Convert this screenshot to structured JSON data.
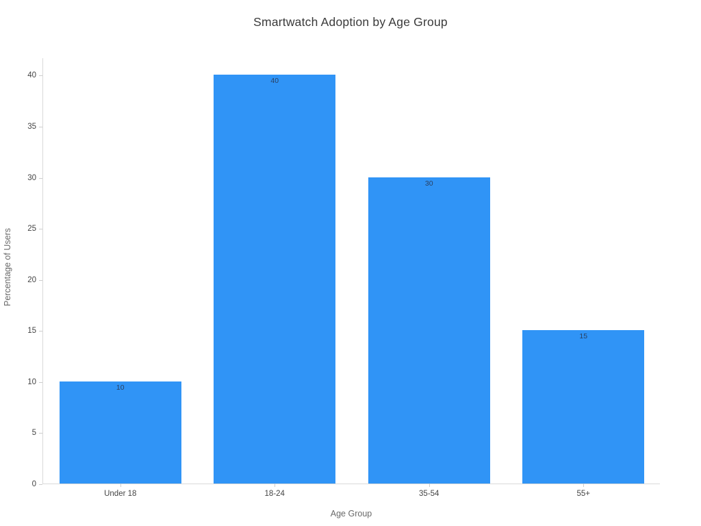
{
  "chart_data": {
    "type": "bar",
    "title": "Smartwatch Adoption by Age Group",
    "xlabel": "Age Group",
    "ylabel": "Percentage of Users",
    "categories": [
      "Under 18",
      "18-24",
      "35-54",
      "55+"
    ],
    "values": [
      10,
      40,
      30,
      15
    ],
    "yticks": [
      0,
      5,
      10,
      15,
      20,
      25,
      30,
      35,
      40
    ],
    "ylim": [
      0,
      41.7
    ],
    "grid": false,
    "legend": "none",
    "colors": {
      "bar_fill": "#3094F6",
      "bar_value_label": "#2a3f5f",
      "tick_label": "#444444",
      "axis_title": "#696969",
      "chart_title": "#3a3a3a",
      "spine": "#d9d9d9",
      "tick_mark": "#cccccc",
      "background": "#ffffff"
    }
  }
}
